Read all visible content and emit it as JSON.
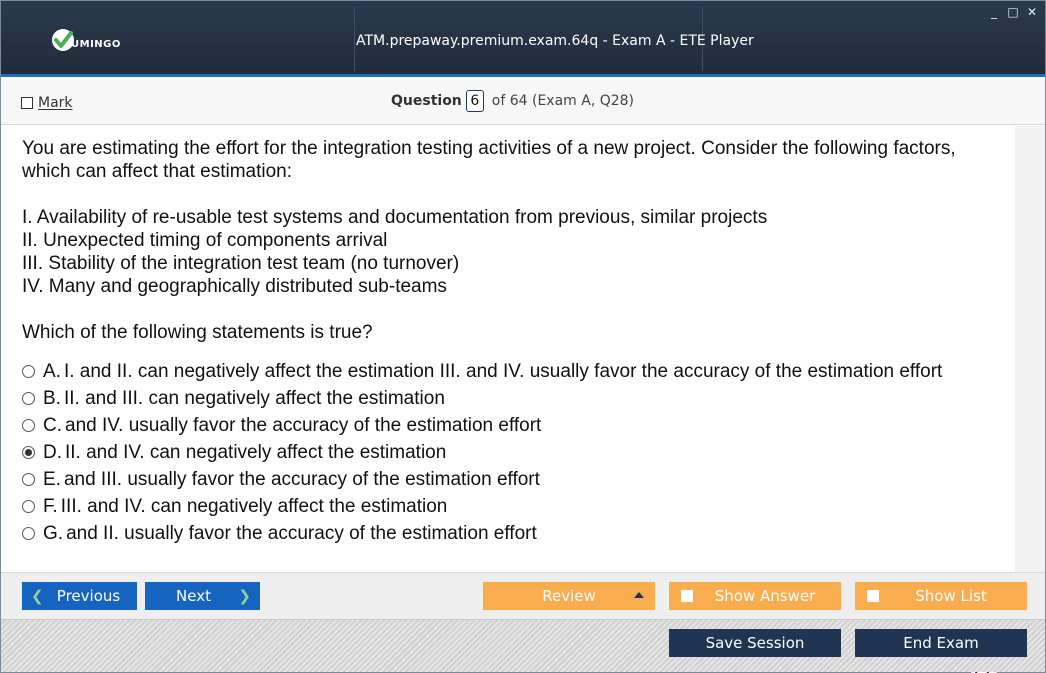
{
  "window": {
    "title": "ATM.prepaway.premium.exam.64q - Exam A - ETE Player",
    "logo_text": "UMINGO",
    "controls": [
      "_",
      "□",
      "✕"
    ]
  },
  "question_bar": {
    "mark_label": "Mark",
    "question_word": "Question",
    "question_number": "6",
    "question_meta": "of 64 (Exam A, Q28)"
  },
  "question": {
    "intro_lines": [
      "You are estimating the effort for the integration testing activities of a new project. Consider the following factors,",
      "which can affect that estimation:"
    ],
    "factors": [
      "I. Availability of re-usable test systems and documentation from previous, similar projects",
      "II. Unexpected timing of components arrival",
      "III. Stability of the integration test team (no turnover)",
      "IV. Many and geographically distributed sub-teams"
    ],
    "prompt": "Which of the following statements is true?"
  },
  "options": [
    {
      "letter": "A.",
      "text": "I. and II. can negatively affect the estimation III. and IV. usually favor the accuracy of the estimation effort",
      "selected": false
    },
    {
      "letter": "B.",
      "text": "II. and III. can negatively affect the estimation",
      "selected": false
    },
    {
      "letter": "C.",
      "text": "and IV. usually favor the accuracy of the estimation effort",
      "selected": false
    },
    {
      "letter": "D.",
      "text": "II. and IV. can negatively affect the estimation",
      "selected": true
    },
    {
      "letter": "E.",
      "text": "and III. usually favor the accuracy of the estimation effort",
      "selected": false
    },
    {
      "letter": "F.",
      "text": "III. and IV. can negatively affect the estimation",
      "selected": false
    },
    {
      "letter": "G.",
      "text": "and II. usually favor the accuracy of the estimation effort",
      "selected": false
    }
  ],
  "zoom_icons": [
    "search-icon",
    "zoom-in-icon",
    "zoom-out-icon"
  ],
  "nav": {
    "previous_label": "Previous",
    "next_label": "Next",
    "review_label": "Review",
    "show_answer_label": "Show Answer",
    "show_list_label": "Show List"
  },
  "footer": {
    "save_session_label": "Save Session",
    "end_exam_label": "End Exam"
  },
  "colors": {
    "titlebar": "#2b3a4d",
    "accent_blue": "#1565c0",
    "orange": "#f9ad4f",
    "dark_button": "#1f3552"
  }
}
